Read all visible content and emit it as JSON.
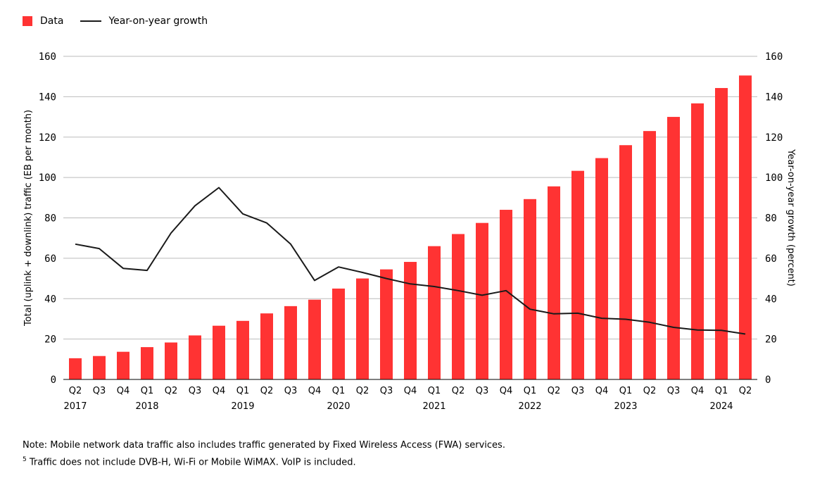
{
  "legend": {
    "data_label": "Data",
    "growth_label": "Year-on-year growth"
  },
  "colors": {
    "bar": "#ff3333",
    "line": "#1a1a1a",
    "grid": "#bbbbbb"
  },
  "notes": {
    "note1": "Note: Mobile network data traffic also includes traffic generated by Fixed Wireless Access (FWA) services.",
    "note2_marker": "5",
    "note2": " Traffic does not include DVB-H, Wi-Fi or Mobile WiMAX. VoIP is included."
  },
  "chart_data": {
    "type": "bar",
    "ylabel": "Total (uplink + downlink) traffic (EB per month)",
    "y2label": "Year-on-year growth (percent)",
    "ylim": [
      0,
      160
    ],
    "y2lim": [
      0,
      160
    ],
    "yticks": [
      0,
      20,
      40,
      60,
      80,
      100,
      120,
      140,
      160
    ],
    "grid": true,
    "legend_position": "top-left",
    "categories": [
      "Q2",
      "Q3",
      "Q4",
      "Q1",
      "Q2",
      "Q3",
      "Q4",
      "Q1",
      "Q2",
      "Q3",
      "Q4",
      "Q1",
      "Q2",
      "Q3",
      "Q4",
      "Q1",
      "Q2",
      "Q3",
      "Q4",
      "Q1",
      "Q2",
      "Q3",
      "Q4",
      "Q1",
      "Q2",
      "Q3",
      "Q4",
      "Q1",
      "Q2"
    ],
    "years": [
      {
        "label": "2017",
        "index": 0
      },
      {
        "label": "2018",
        "index": 3
      },
      {
        "label": "2019",
        "index": 7
      },
      {
        "label": "2020",
        "index": 11
      },
      {
        "label": "2021",
        "index": 15
      },
      {
        "label": "2022",
        "index": 19
      },
      {
        "label": "2023",
        "index": 23
      },
      {
        "label": "2024",
        "index": 27
      }
    ],
    "series": [
      {
        "name": "Data",
        "type": "bar",
        "axis": "left",
        "values": [
          10.5,
          11.6,
          13.7,
          16.0,
          18.3,
          21.8,
          26.6,
          29.0,
          32.7,
          36.3,
          39.5,
          45.0,
          50.0,
          54.5,
          58.2,
          66.0,
          72.0,
          77.5,
          84.0,
          89.3,
          95.6,
          103.3,
          109.6,
          116.0,
          123.0,
          130.0,
          136.7,
          144.3,
          150.5
        ]
      },
      {
        "name": "Year-on-year growth",
        "type": "line",
        "axis": "right",
        "values": [
          67.0,
          64.8,
          55.0,
          54.0,
          72.5,
          86.0,
          95.0,
          82.0,
          77.5,
          67.0,
          49.0,
          55.7,
          53.0,
          50.0,
          47.3,
          46.0,
          44.0,
          41.7,
          44.0,
          34.8,
          32.5,
          32.8,
          30.3,
          29.8,
          28.3,
          25.8,
          24.5,
          24.3,
          22.5
        ]
      }
    ]
  }
}
